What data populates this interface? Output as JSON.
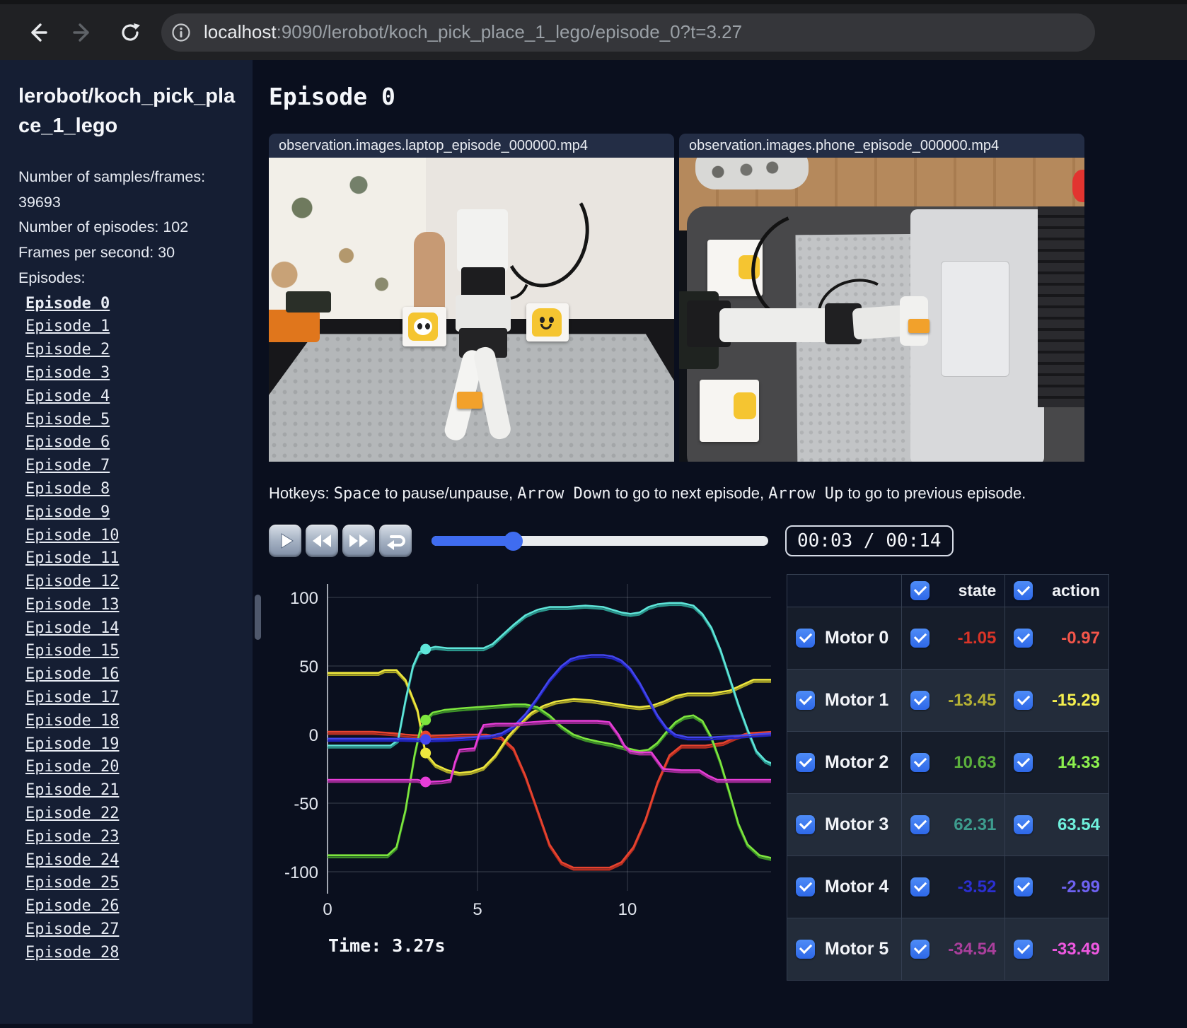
{
  "browser": {
    "url_host": "localhost",
    "url_rest": ":9090/lerobot/koch_pick_place_1_lego/episode_0?t=3.27",
    "icons": {
      "back": "arrow-left",
      "forward": "arrow-right",
      "reload": "reload-circular-arrow",
      "info": "info-circle"
    }
  },
  "sidebar": {
    "title": "lerobot/koch_pick_place_1_lego",
    "info_line_1": "Number of samples/frames: 39693",
    "info_line_2": "Number of episodes: 102",
    "info_line_3": "Frames per second: 30",
    "episodes_label": "Episodes:",
    "active_episode": "Episode 0",
    "episodes": [
      "Episode 0",
      "Episode 1",
      "Episode 2",
      "Episode 3",
      "Episode 4",
      "Episode 5",
      "Episode 6",
      "Episode 7",
      "Episode 8",
      "Episode 9",
      "Episode 10",
      "Episode 11",
      "Episode 12",
      "Episode 13",
      "Episode 14",
      "Episode 15",
      "Episode 16",
      "Episode 17",
      "Episode 18",
      "Episode 19",
      "Episode 20",
      "Episode 21",
      "Episode 22",
      "Episode 23",
      "Episode 24",
      "Episode 25",
      "Episode 26",
      "Episode 27",
      "Episode 28"
    ]
  },
  "main": {
    "title": "Episode 0",
    "videos": [
      {
        "label": "observation.images.laptop_episode_000000.mp4"
      },
      {
        "label": "observation.images.phone_episode_000000.mp4"
      }
    ],
    "hotkeys_segments": [
      {
        "text": "Hotkeys: ",
        "mono": false
      },
      {
        "text": "Space",
        "mono": true
      },
      {
        "text": " to pause/unpause, ",
        "mono": false
      },
      {
        "text": "Arrow Down",
        "mono": true
      },
      {
        "text": " to go to next episode, ",
        "mono": false
      },
      {
        "text": "Arrow Up",
        "mono": true
      },
      {
        "text": " to go to previous episode.",
        "mono": false
      }
    ],
    "player": {
      "time_display": "00:03 / 00:14",
      "progress_pct": 24.2
    },
    "time_readout": "Time: 3.27s"
  },
  "table": {
    "col_state": "state",
    "col_action": "action",
    "motors": [
      {
        "name": "Motor 0",
        "state": "-1.05",
        "action": "-0.97",
        "state_color": "#d93428",
        "action_color": "#f4564a"
      },
      {
        "name": "Motor 1",
        "state": "-13.45",
        "action": "-15.29",
        "state_color": "#b5b134",
        "action_color": "#f5ef4e"
      },
      {
        "name": "Motor 2",
        "state": "10.63",
        "action": "14.33",
        "state_color": "#5cb13c",
        "action_color": "#8cf04e"
      },
      {
        "name": "Motor 3",
        "state": "62.31",
        "action": "63.54",
        "state_color": "#3d9c8e",
        "action_color": "#6ff0dc"
      },
      {
        "name": "Motor 4",
        "state": "-3.52",
        "action": "-2.99",
        "state_color": "#2b2fd0",
        "action_color": "#6e62f2"
      },
      {
        "name": "Motor 5",
        "state": "-34.54",
        "action": "-33.49",
        "state_color": "#aa3f9c",
        "action_color": "#ee58e0"
      }
    ]
  },
  "chart_data": {
    "type": "line",
    "title": "",
    "xlabel": "",
    "ylabel": "",
    "xlim": [
      0,
      14.8
    ],
    "ylim": [
      -115,
      115
    ],
    "xticks": [
      0,
      5,
      10
    ],
    "yticks": [
      100,
      50,
      0,
      -50,
      -100
    ],
    "grid": true,
    "current_time": 3.27,
    "series": [
      {
        "name": "Motor 0",
        "state_color": "#b52e20",
        "action_color": "#e8432f",
        "current_value": -1.05,
        "points": [
          [
            0,
            2
          ],
          [
            1.5,
            2
          ],
          [
            2.2,
            1
          ],
          [
            2.6,
            0
          ],
          [
            3.27,
            -1
          ],
          [
            4.5,
            0
          ],
          [
            5.3,
            0
          ],
          [
            5.8,
            -2
          ],
          [
            6.2,
            -10
          ],
          [
            6.6,
            -30
          ],
          [
            7.0,
            -55
          ],
          [
            7.4,
            -80
          ],
          [
            7.8,
            -93
          ],
          [
            8.2,
            -97
          ],
          [
            9.4,
            -97
          ],
          [
            9.8,
            -93
          ],
          [
            10.2,
            -82
          ],
          [
            10.6,
            -62
          ],
          [
            11.0,
            -35
          ],
          [
            11.4,
            -15
          ],
          [
            11.8,
            -8
          ],
          [
            12.6,
            -8
          ],
          [
            13.2,
            -6
          ],
          [
            13.6,
            -2
          ],
          [
            14.0,
            1
          ],
          [
            14.8,
            2
          ]
        ]
      },
      {
        "name": "Motor 1",
        "state_color": "#a9a426",
        "action_color": "#efe83e",
        "current_value": -13.45,
        "points": [
          [
            0,
            45
          ],
          [
            1.7,
            45
          ],
          [
            1.9,
            47
          ],
          [
            2.3,
            47
          ],
          [
            2.6,
            40
          ],
          [
            3.0,
            18
          ],
          [
            3.27,
            -13.5
          ],
          [
            3.6,
            -22
          ],
          [
            4.0,
            -26
          ],
          [
            4.4,
            -28
          ],
          [
            4.8,
            -27
          ],
          [
            5.2,
            -24
          ],
          [
            5.6,
            -15
          ],
          [
            6.0,
            -2
          ],
          [
            6.4,
            8
          ],
          [
            6.8,
            16
          ],
          [
            7.2,
            21
          ],
          [
            7.6,
            24
          ],
          [
            8.2,
            26
          ],
          [
            8.8,
            25
          ],
          [
            9.4,
            23
          ],
          [
            10.0,
            21
          ],
          [
            10.4,
            20
          ],
          [
            10.8,
            21
          ],
          [
            11.2,
            24
          ],
          [
            11.6,
            28
          ],
          [
            12.0,
            30
          ],
          [
            12.8,
            30
          ],
          [
            13.4,
            32
          ],
          [
            13.8,
            36
          ],
          [
            14.2,
            40
          ],
          [
            14.8,
            40
          ]
        ]
      },
      {
        "name": "Motor 2",
        "state_color": "#3c8f28",
        "action_color": "#7de63e",
        "current_value": 10.63,
        "points": [
          [
            0,
            -88
          ],
          [
            2.0,
            -88
          ],
          [
            2.3,
            -82
          ],
          [
            2.6,
            -55
          ],
          [
            2.9,
            -15
          ],
          [
            3.1,
            5
          ],
          [
            3.27,
            11
          ],
          [
            3.5,
            16
          ],
          [
            3.9,
            18
          ],
          [
            4.4,
            19
          ],
          [
            5.0,
            20
          ],
          [
            5.6,
            21
          ],
          [
            6.2,
            22
          ],
          [
            6.6,
            22
          ],
          [
            7.0,
            20
          ],
          [
            7.4,
            14
          ],
          [
            7.8,
            6
          ],
          [
            8.2,
            0
          ],
          [
            8.6,
            -3
          ],
          [
            9.0,
            -5
          ],
          [
            9.5,
            -7
          ],
          [
            10.0,
            -10
          ],
          [
            10.4,
            -12
          ],
          [
            10.7,
            -11
          ],
          [
            11.0,
            -6
          ],
          [
            11.3,
            2
          ],
          [
            11.6,
            9
          ],
          [
            11.9,
            13
          ],
          [
            12.2,
            14
          ],
          [
            12.5,
            10
          ],
          [
            12.8,
            -2
          ],
          [
            13.1,
            -20
          ],
          [
            13.4,
            -42
          ],
          [
            13.7,
            -65
          ],
          [
            14.0,
            -80
          ],
          [
            14.4,
            -88
          ],
          [
            14.8,
            -90
          ]
        ]
      },
      {
        "name": "Motor 3",
        "state_color": "#2a968c",
        "action_color": "#5fe6da",
        "current_value": 62.31,
        "points": [
          [
            0,
            -8
          ],
          [
            2.1,
            -8
          ],
          [
            2.35,
            -4
          ],
          [
            2.6,
            25
          ],
          [
            2.85,
            50
          ],
          [
            3.05,
            60
          ],
          [
            3.27,
            62.3
          ],
          [
            3.6,
            64
          ],
          [
            4.0,
            63
          ],
          [
            4.6,
            63
          ],
          [
            5.2,
            63
          ],
          [
            5.5,
            66
          ],
          [
            5.8,
            72
          ],
          [
            6.2,
            80
          ],
          [
            6.6,
            87
          ],
          [
            7.0,
            91
          ],
          [
            7.4,
            93
          ],
          [
            8.0,
            93
          ],
          [
            8.6,
            94
          ],
          [
            9.2,
            93
          ],
          [
            9.5,
            91
          ],
          [
            9.8,
            89
          ],
          [
            10.1,
            88
          ],
          [
            10.4,
            89
          ],
          [
            10.7,
            93
          ],
          [
            11.0,
            95
          ],
          [
            11.4,
            96
          ],
          [
            11.8,
            96
          ],
          [
            12.2,
            94
          ],
          [
            12.5,
            88
          ],
          [
            12.8,
            78
          ],
          [
            13.1,
            62
          ],
          [
            13.4,
            42
          ],
          [
            13.7,
            22
          ],
          [
            14.0,
            4
          ],
          [
            14.3,
            -12
          ],
          [
            14.6,
            -19
          ],
          [
            14.8,
            -21
          ]
        ]
      },
      {
        "name": "Motor 4",
        "state_color": "#2023be",
        "action_color": "#4346ee",
        "current_value": -3.52,
        "points": [
          [
            0,
            -3
          ],
          [
            2.5,
            -3
          ],
          [
            3.27,
            -3.5
          ],
          [
            4.0,
            -3
          ],
          [
            4.8,
            -2
          ],
          [
            5.4,
            -1
          ],
          [
            5.8,
            1
          ],
          [
            6.2,
            6
          ],
          [
            6.6,
            15
          ],
          [
            7.0,
            27
          ],
          [
            7.4,
            40
          ],
          [
            7.8,
            50
          ],
          [
            8.1,
            55
          ],
          [
            8.4,
            57
          ],
          [
            8.8,
            58
          ],
          [
            9.2,
            58
          ],
          [
            9.5,
            57
          ],
          [
            9.8,
            54
          ],
          [
            10.1,
            48
          ],
          [
            10.4,
            38
          ],
          [
            10.7,
            26
          ],
          [
            11.0,
            14
          ],
          [
            11.3,
            5
          ],
          [
            11.6,
            0
          ],
          [
            12.0,
            -2
          ],
          [
            12.8,
            -2
          ],
          [
            13.6,
            -1
          ],
          [
            14.2,
            0
          ],
          [
            14.8,
            1
          ]
        ]
      },
      {
        "name": "Motor 5",
        "state_color": "#a02a96",
        "action_color": "#e83dd8",
        "current_value": -34.54,
        "points": [
          [
            0,
            -33
          ],
          [
            3.0,
            -33
          ],
          [
            3.27,
            -34.5
          ],
          [
            3.8,
            -34
          ],
          [
            4.1,
            -33
          ],
          [
            4.25,
            -20
          ],
          [
            4.4,
            -11
          ],
          [
            4.9,
            -10
          ],
          [
            5.05,
            0
          ],
          [
            5.2,
            7
          ],
          [
            5.6,
            8
          ],
          [
            6.2,
            8
          ],
          [
            6.8,
            9
          ],
          [
            7.4,
            10
          ],
          [
            8.2,
            10
          ],
          [
            9.0,
            10
          ],
          [
            9.4,
            9
          ],
          [
            9.7,
            0
          ],
          [
            9.9,
            -8
          ],
          [
            10.1,
            -12
          ],
          [
            10.4,
            -13
          ],
          [
            10.8,
            -13
          ],
          [
            11.2,
            -25
          ],
          [
            11.8,
            -26
          ],
          [
            12.4,
            -26
          ],
          [
            12.7,
            -30
          ],
          [
            13.0,
            -33
          ],
          [
            13.6,
            -33
          ],
          [
            14.2,
            -33
          ],
          [
            14.8,
            -33
          ]
        ]
      }
    ]
  }
}
